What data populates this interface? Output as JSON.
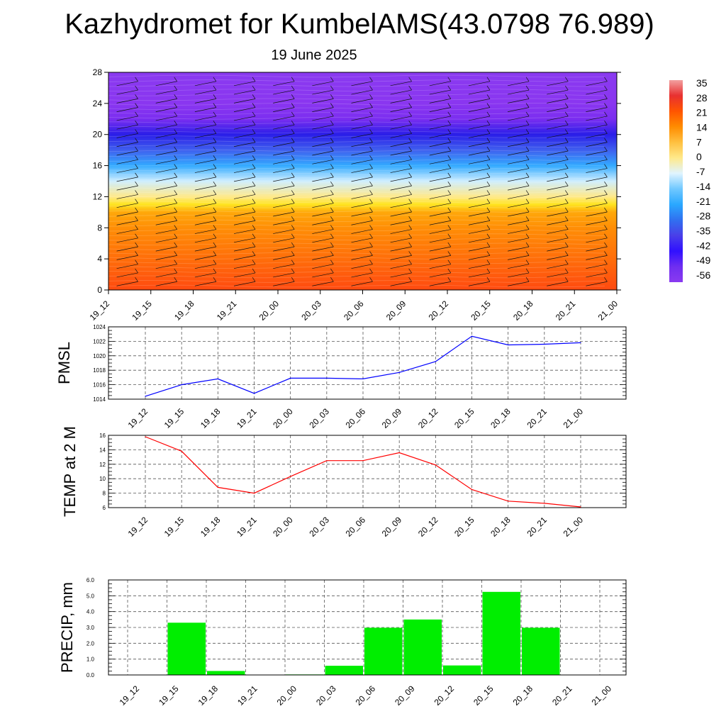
{
  "header": {
    "title": "Kazhydromet for KumbelAMS(43.0798 76.989)",
    "subtitle": "19 June 2025"
  },
  "time_labels": [
    "19_12",
    "19_15",
    "19_18",
    "19_21",
    "20_00",
    "20_03",
    "20_06",
    "20_09",
    "20_12",
    "20_15",
    "20_18",
    "20_21",
    "21_00"
  ],
  "chart_data": [
    {
      "type": "heatmap",
      "title": "",
      "xlabel": "",
      "ylabel": "",
      "categories": [
        "19_12",
        "19_15",
        "19_18",
        "19_21",
        "20_00",
        "20_03",
        "20_06",
        "20_09",
        "20_12",
        "20_15",
        "20_18",
        "20_21",
        "21_00"
      ],
      "ylim": [
        0,
        28
      ],
      "yticks": [
        0,
        4,
        8,
        12,
        16,
        20,
        24,
        28
      ],
      "colorbar": {
        "labels": [
          "35",
          "28",
          "21",
          "14",
          "7",
          "0",
          "-7",
          "-14",
          "-21",
          "-28",
          "-35",
          "-42",
          "-49",
          "-56"
        ],
        "colors": [
          "#f2a0a0",
          "#e83030",
          "#ff5500",
          "#ff8c00",
          "#ffc040",
          "#ffe98a",
          "#e0f4ff",
          "#70c8ff",
          "#2aa8ff",
          "#3070f0",
          "#4a3fe8",
          "#3010ff",
          "#6f2ef0",
          "#8a3af0"
        ]
      },
      "contour_field": {
        "heights": [
          0,
          4,
          8,
          10,
          11,
          12,
          14,
          16,
          18,
          20,
          22,
          24,
          28
        ],
        "colors": [
          "#ff4a10",
          "#ff6e0a",
          "#ff8e06",
          "#ffa80a",
          "#ffe420",
          "#ffe98a",
          "#cfeeff",
          "#33aaff",
          "#3f5fee",
          "#2a1ee8",
          "#7b2ef0",
          "#8a36f0",
          "#8a3af0"
        ]
      },
      "grid": false
    },
    {
      "type": "line",
      "title": "",
      "xlabel": "",
      "ylabel": "PMSL",
      "x": [
        "19_12",
        "19_15",
        "19_18",
        "19_21",
        "20_00",
        "20_03",
        "20_06",
        "20_09",
        "20_12",
        "20_15",
        "20_18",
        "20_21",
        "21_00"
      ],
      "series": [
        {
          "values": [
            1014.4,
            1016.0,
            1016.8,
            1014.8,
            1016.9,
            1016.9,
            1016.8,
            1017.7,
            1019.2,
            1022.7,
            1021.5,
            1021.6,
            1021.8
          ],
          "color": "#0000ff"
        }
      ],
      "ylim": [
        1014,
        1024
      ],
      "yticks": [
        "1014",
        "1016",
        "1018",
        "1020",
        "1022",
        "1024"
      ],
      "grid": true
    },
    {
      "type": "line",
      "title": "",
      "xlabel": "",
      "ylabel": "TEMP at 2 M",
      "x": [
        "19_12",
        "19_15",
        "19_18",
        "19_21",
        "20_00",
        "20_03",
        "20_06",
        "20_09",
        "20_12",
        "20_15",
        "20_18",
        "20_21",
        "21_00"
      ],
      "series": [
        {
          "values": [
            15.8,
            13.8,
            8.8,
            8.0,
            10.3,
            12.5,
            12.5,
            13.6,
            11.9,
            8.5,
            6.9,
            6.6,
            6.1
          ],
          "color": "#ff0000"
        }
      ],
      "ylim": [
        6,
        16
      ],
      "yticks": [
        "6",
        "8",
        "10",
        "12",
        "14",
        "16"
      ],
      "grid": true
    },
    {
      "type": "bar",
      "title": "",
      "xlabel": "",
      "ylabel": "PRECIP, mm",
      "categories": [
        "19_12",
        "19_15",
        "19_18",
        "19_21",
        "20_00",
        "20_03",
        "20_06",
        "20_09",
        "20_12",
        "20_15",
        "20_18",
        "20_21",
        "21_00"
      ],
      "values": [
        0.0,
        3.3,
        0.25,
        0.0,
        0.03,
        0.58,
        2.98,
        3.5,
        0.6,
        5.25,
        2.98,
        0.0,
        0.0
      ],
      "ylim": [
        0,
        6
      ],
      "yticks": [
        "0.0",
        "1.0",
        "2.0",
        "3.0",
        "4.0",
        "5.0",
        "6.0"
      ],
      "color": "#00ee00",
      "grid": true
    }
  ]
}
